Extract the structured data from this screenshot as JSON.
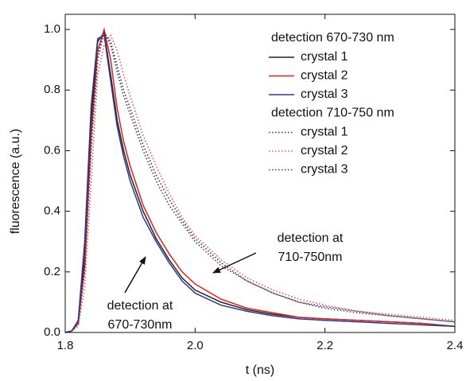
{
  "chart_data": {
    "type": "line",
    "xlabel": "t (ns)",
    "ylabel": "fluorescence (a.u.)",
    "xlim": [
      1.8,
      2.4
    ],
    "ylim": [
      0,
      1.05
    ],
    "xticks": [
      1.8,
      {
        "value": 2,
        "label": "2.0"
      },
      2.2,
      2.4
    ],
    "yticks": [
      {
        "value": 0,
        "label": "0.0"
      },
      0.2,
      0.4,
      0.6,
      0.8,
      {
        "value": 1,
        "label": "1.0"
      }
    ],
    "x": [
      1.8,
      1.81,
      1.82,
      1.83,
      1.84,
      1.85,
      1.86,
      1.87,
      1.88,
      1.89,
      1.9,
      1.92,
      1.94,
      1.96,
      1.98,
      2.0,
      2.04,
      2.08,
      2.12,
      2.16,
      2.2,
      2.25,
      2.3,
      2.35,
      2.4
    ],
    "legend_groups": [
      {
        "title": "detection 670-730 nm",
        "linestyle": "solid"
      },
      {
        "title": "detection 710-750 nm",
        "linestyle": "dotted"
      }
    ],
    "series": [
      {
        "name": "crystal 1",
        "color": "#222222",
        "linestyle": "solid",
        "values": [
          0,
          0.005,
          0.03,
          0.25,
          0.7,
          0.96,
          0.99,
          0.85,
          0.7,
          0.6,
          0.52,
          0.4,
          0.31,
          0.24,
          0.18,
          0.14,
          0.1,
          0.075,
          0.06,
          0.05,
          0.045,
          0.04,
          0.035,
          0.03,
          0.02
        ]
      },
      {
        "name": "crystal 2",
        "color": "#e0201b",
        "linestyle": "solid",
        "values": [
          0,
          0.005,
          0.03,
          0.22,
          0.65,
          0.93,
          1.0,
          0.9,
          0.74,
          0.63,
          0.55,
          0.42,
          0.33,
          0.26,
          0.2,
          0.16,
          0.11,
          0.08,
          0.065,
          0.05,
          0.045,
          0.04,
          0.035,
          0.03,
          0.02
        ]
      },
      {
        "name": "crystal 3",
        "color": "#2b3a8f",
        "linestyle": "solid",
        "values": [
          0,
          0.005,
          0.04,
          0.3,
          0.75,
          0.97,
          0.98,
          0.83,
          0.68,
          0.58,
          0.5,
          0.38,
          0.3,
          0.23,
          0.17,
          0.13,
          0.09,
          0.07,
          0.055,
          0.045,
          0.04,
          0.035,
          0.03,
          0.025,
          0.02
        ]
      },
      {
        "name": "crystal 1",
        "color": "#4a2a4a",
        "linestyle": "dotted",
        "values": [
          0,
          0.005,
          0.03,
          0.2,
          0.6,
          0.9,
          0.99,
          0.96,
          0.88,
          0.8,
          0.74,
          0.62,
          0.52,
          0.44,
          0.37,
          0.31,
          0.23,
          0.17,
          0.13,
          0.1,
          0.085,
          0.07,
          0.055,
          0.045,
          0.035
        ]
      },
      {
        "name": "crystal 2",
        "color": "#e85050",
        "linestyle": "dotted",
        "values": [
          0,
          0.005,
          0.02,
          0.15,
          0.5,
          0.85,
          0.95,
          0.98,
          0.93,
          0.85,
          0.78,
          0.65,
          0.55,
          0.46,
          0.38,
          0.32,
          0.24,
          0.18,
          0.14,
          0.11,
          0.09,
          0.07,
          0.06,
          0.05,
          0.04
        ]
      },
      {
        "name": "crystal 3",
        "color": "#3a3a70",
        "linestyle": "dotted",
        "values": [
          0,
          0.005,
          0.03,
          0.22,
          0.63,
          0.92,
          0.99,
          0.95,
          0.86,
          0.78,
          0.72,
          0.6,
          0.5,
          0.42,
          0.36,
          0.3,
          0.22,
          0.17,
          0.13,
          0.1,
          0.08,
          0.065,
          0.055,
          0.045,
          0.035
        ]
      }
    ],
    "annotations": [
      {
        "text": [
          "detection at",
          "710-750nm"
        ]
      },
      {
        "text": [
          "detection at",
          "670-730nm"
        ]
      }
    ]
  }
}
